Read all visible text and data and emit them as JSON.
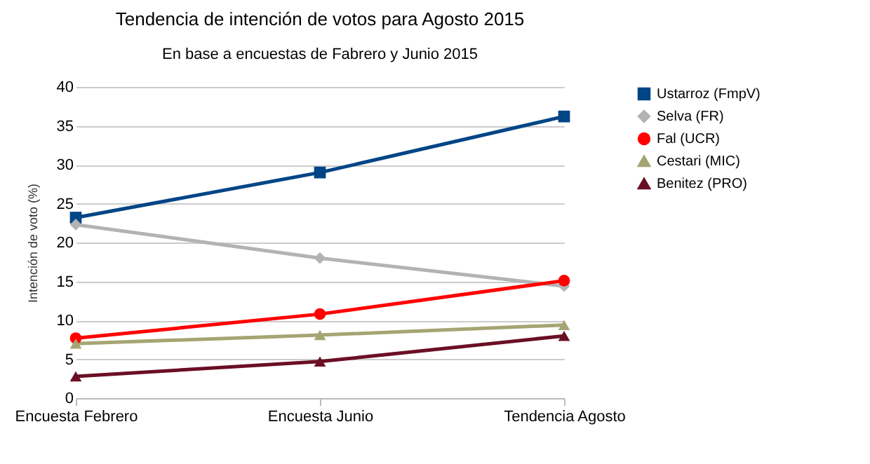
{
  "chart_data": {
    "type": "line",
    "title": "Tendencia de intención de votos para Agosto 2015",
    "subtitle": "En base a encuestas de Fabrero y Junio 2015",
    "ylabel": "Intención de voto (%)",
    "categories": [
      "Encuesta Febrero",
      "Encuesta Junio",
      "Tendencia Agosto"
    ],
    "series": [
      {
        "name": "Ustarroz (FmpV)",
        "color": "#004586",
        "marker": "square",
        "values": [
          23.2,
          29,
          36.2
        ]
      },
      {
        "name": "Selva (FR)",
        "color": "#b3b3b3",
        "marker": "diamond",
        "values": [
          22.3,
          18,
          14.4
        ]
      },
      {
        "name": "Fal (UCR)",
        "color": "#ff0000",
        "marker": "circle",
        "values": [
          7.7,
          10.8,
          15.1
        ]
      },
      {
        "name": "Cestari (MIC)",
        "color": "#a5a573",
        "marker": "triangle",
        "values": [
          7,
          8.1,
          9.4
        ]
      },
      {
        "name": "Benitez (PRO)",
        "color": "#6b0f24",
        "marker": "triangle",
        "values": [
          2.8,
          4.7,
          8
        ]
      }
    ],
    "ylim": [
      0,
      40
    ],
    "yticks": [
      0,
      5,
      10,
      15,
      20,
      25,
      30,
      35,
      40
    ],
    "grid": "y",
    "legend": "right",
    "line_style": "solid"
  }
}
